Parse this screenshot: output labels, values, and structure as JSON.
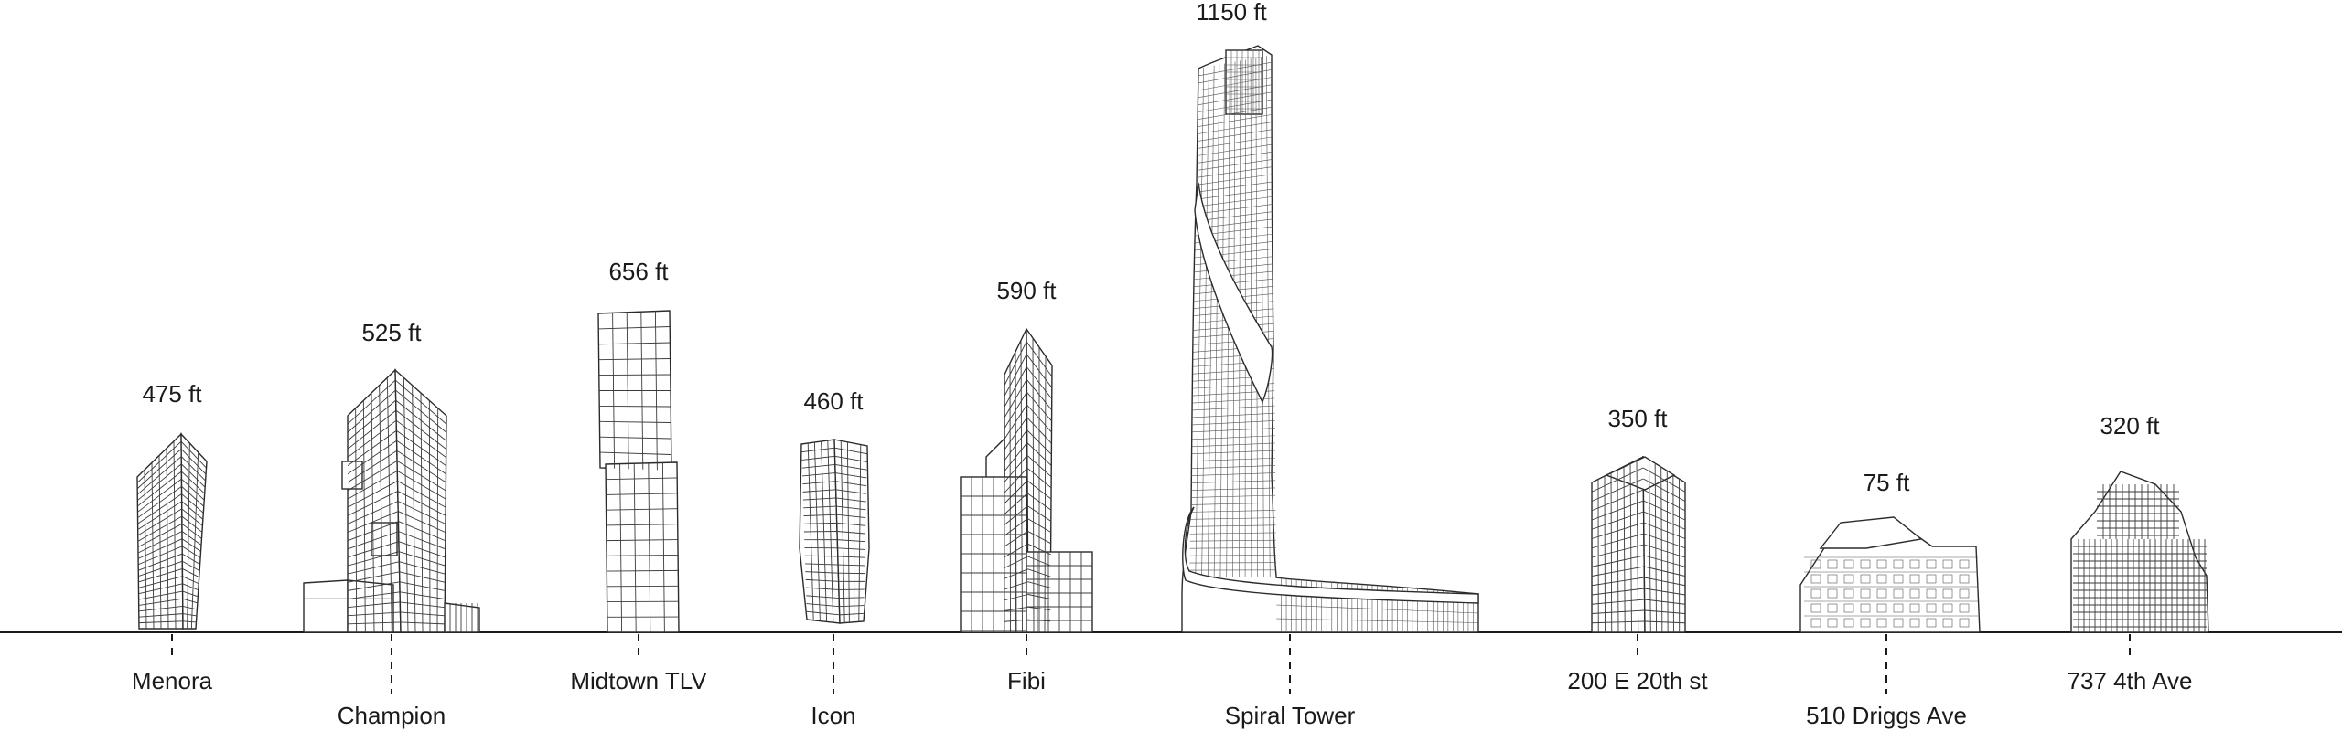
{
  "buildings": [
    {
      "name": "Menora",
      "height": "475 ft"
    },
    {
      "name": "Champion",
      "height": "525 ft"
    },
    {
      "name": "Midtown TLV",
      "height": "656 ft"
    },
    {
      "name": "Icon",
      "height": "460 ft"
    },
    {
      "name": "Fibi",
      "height": "590 ft"
    },
    {
      "name": "Spiral Tower",
      "height": "1150 ft"
    },
    {
      "name": "200 E 20th st",
      "height": "350 ft"
    },
    {
      "name": "510 Driggs Ave",
      "height": "75 ft"
    },
    {
      "name": "737 4th Ave",
      "height": "320 ft"
    }
  ]
}
